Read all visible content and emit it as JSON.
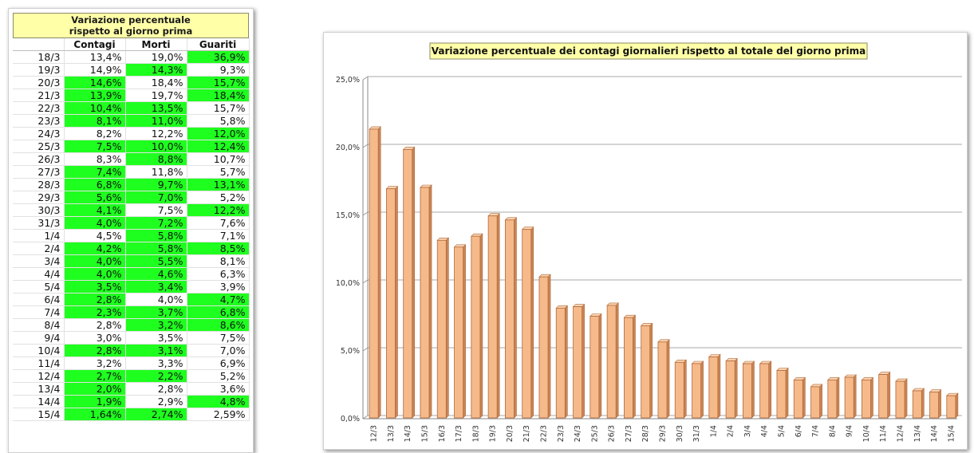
{
  "table": {
    "title_line1": "Variazione percentuale",
    "title_line2": "rispetto al giorno prima",
    "headers": [
      "",
      "Contagi",
      "Morti",
      "Guariti"
    ],
    "rows": [
      {
        "date": "18/3",
        "contagi": "13,4%",
        "morti": "19,0%",
        "guariti": "36,9%",
        "hl": [
          false,
          false,
          true
        ]
      },
      {
        "date": "19/3",
        "contagi": "14,9%",
        "morti": "14,3%",
        "guariti": "9,3%",
        "hl": [
          false,
          true,
          false
        ]
      },
      {
        "date": "20/3",
        "contagi": "14,6%",
        "morti": "18,4%",
        "guariti": "15,7%",
        "hl": [
          true,
          false,
          true
        ]
      },
      {
        "date": "21/3",
        "contagi": "13,9%",
        "morti": "19,7%",
        "guariti": "18,4%",
        "hl": [
          true,
          false,
          true
        ]
      },
      {
        "date": "22/3",
        "contagi": "10,4%",
        "morti": "13,5%",
        "guariti": "15,7%",
        "hl": [
          true,
          true,
          false
        ]
      },
      {
        "date": "23/3",
        "contagi": "8,1%",
        "morti": "11,0%",
        "guariti": "5,8%",
        "hl": [
          true,
          true,
          false
        ]
      },
      {
        "date": "24/3",
        "contagi": "8,2%",
        "morti": "12,2%",
        "guariti": "12,0%",
        "hl": [
          false,
          false,
          true
        ]
      },
      {
        "date": "25/3",
        "contagi": "7,5%",
        "morti": "10,0%",
        "guariti": "12,4%",
        "hl": [
          true,
          true,
          true
        ]
      },
      {
        "date": "26/3",
        "contagi": "8,3%",
        "morti": "8,8%",
        "guariti": "10,7%",
        "hl": [
          false,
          true,
          false
        ]
      },
      {
        "date": "27/3",
        "contagi": "7,4%",
        "morti": "11,8%",
        "guariti": "5,7%",
        "hl": [
          true,
          false,
          false
        ]
      },
      {
        "date": "28/3",
        "contagi": "6,8%",
        "morti": "9,7%",
        "guariti": "13,1%",
        "hl": [
          true,
          true,
          true
        ]
      },
      {
        "date": "29/3",
        "contagi": "5,6%",
        "morti": "7,0%",
        "guariti": "5,2%",
        "hl": [
          true,
          true,
          false
        ]
      },
      {
        "date": "30/3",
        "contagi": "4,1%",
        "morti": "7,5%",
        "guariti": "12,2%",
        "hl": [
          true,
          false,
          true
        ]
      },
      {
        "date": "31/3",
        "contagi": "4,0%",
        "morti": "7,2%",
        "guariti": "7,6%",
        "hl": [
          true,
          true,
          false
        ]
      },
      {
        "date": "1/4",
        "contagi": "4,5%",
        "morti": "5,8%",
        "guariti": "7,1%",
        "hl": [
          false,
          true,
          false
        ]
      },
      {
        "date": "2/4",
        "contagi": "4,2%",
        "morti": "5,8%",
        "guariti": "8,5%",
        "hl": [
          true,
          true,
          true
        ]
      },
      {
        "date": "3/4",
        "contagi": "4,0%",
        "morti": "5,5%",
        "guariti": "8,1%",
        "hl": [
          true,
          true,
          false
        ]
      },
      {
        "date": "4/4",
        "contagi": "4,0%",
        "morti": "4,6%",
        "guariti": "6,3%",
        "hl": [
          true,
          true,
          false
        ]
      },
      {
        "date": "5/4",
        "contagi": "3,5%",
        "morti": "3,4%",
        "guariti": "3,9%",
        "hl": [
          true,
          true,
          false
        ]
      },
      {
        "date": "6/4",
        "contagi": "2,8%",
        "morti": "4,0%",
        "guariti": "4,7%",
        "hl": [
          true,
          false,
          true
        ]
      },
      {
        "date": "7/4",
        "contagi": "2,3%",
        "morti": "3,7%",
        "guariti": "6,8%",
        "hl": [
          true,
          true,
          true
        ]
      },
      {
        "date": "8/4",
        "contagi": "2,8%",
        "morti": "3,2%",
        "guariti": "8,6%",
        "hl": [
          false,
          true,
          true
        ]
      },
      {
        "date": "9/4",
        "contagi": "3,0%",
        "morti": "3,5%",
        "guariti": "7,5%",
        "hl": [
          false,
          false,
          false
        ]
      },
      {
        "date": "10/4",
        "contagi": "2,8%",
        "morti": "3,1%",
        "guariti": "7,0%",
        "hl": [
          true,
          true,
          false
        ]
      },
      {
        "date": "11/4",
        "contagi": "3,2%",
        "morti": "3,3%",
        "guariti": "6,9%",
        "hl": [
          false,
          false,
          false
        ]
      },
      {
        "date": "12/4",
        "contagi": "2,7%",
        "morti": "2,2%",
        "guariti": "5,2%",
        "hl": [
          true,
          true,
          false
        ]
      },
      {
        "date": "13/4",
        "contagi": "2,0%",
        "morti": "2,8%",
        "guariti": "3,6%",
        "hl": [
          true,
          false,
          false
        ]
      },
      {
        "date": "14/4",
        "contagi": "1,9%",
        "morti": "2,9%",
        "guariti": "4,8%",
        "hl": [
          true,
          false,
          true
        ]
      },
      {
        "date": "15/4",
        "contagi": "1,64%",
        "morti": "2,74%",
        "guariti": "2,59%",
        "hl": [
          true,
          true,
          false
        ]
      }
    ]
  },
  "colors": {
    "highlight": "#1fff1f",
    "title_bg": "#ffffa8",
    "bar_fill": "#f6b98a",
    "bar_stroke": "#b06a3a"
  },
  "chart_data": {
    "type": "bar",
    "title": "Variazione percentuale dei contagi giornalieri rispetto al totale del giorno prima",
    "categories": [
      "12/3",
      "13/3",
      "14/3",
      "15/3",
      "16/3",
      "17/3",
      "18/3",
      "19/3",
      "20/3",
      "21/3",
      "22/3",
      "23/3",
      "24/3",
      "25/3",
      "26/3",
      "27/3",
      "28/3",
      "29/3",
      "30/3",
      "31/3",
      "1/4",
      "2/4",
      "3/4",
      "4/4",
      "5/4",
      "6/4",
      "7/4",
      "8/4",
      "9/4",
      "10/4",
      "11/4",
      "12/4",
      "13/4",
      "14/4",
      "15/4"
    ],
    "values": [
      21.3,
      16.9,
      19.8,
      17.0,
      13.1,
      12.6,
      13.4,
      14.9,
      14.6,
      13.9,
      10.4,
      8.1,
      8.2,
      7.5,
      8.3,
      7.4,
      6.8,
      5.6,
      4.1,
      4.0,
      4.5,
      4.2,
      4.0,
      4.0,
      3.5,
      2.8,
      2.3,
      2.8,
      3.0,
      2.8,
      3.2,
      2.7,
      2.0,
      1.9,
      1.64
    ],
    "ylim": [
      0,
      25
    ],
    "yticks": [
      "0,0%",
      "5,0%",
      "10,0%",
      "15,0%",
      "20,0%",
      "25,0%"
    ],
    "grid": true,
    "legend": "none"
  }
}
